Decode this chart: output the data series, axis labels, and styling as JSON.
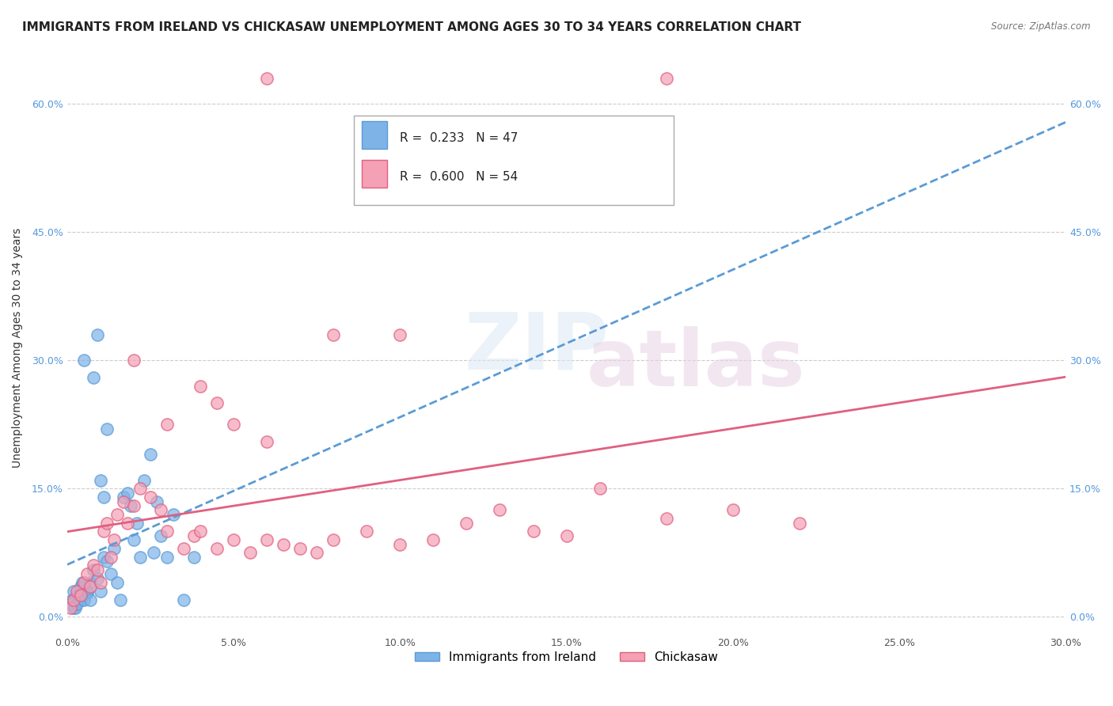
{
  "title": "IMMIGRANTS FROM IRELAND VS CHICKASAW UNEMPLOYMENT AMONG AGES 30 TO 34 YEARS CORRELATION CHART",
  "source": "Source: ZipAtlas.com",
  "ylabel": "Unemployment Among Ages 30 to 34 years",
  "legend_label_blue": "Immigrants from Ireland",
  "legend_label_pink": "Chickasaw",
  "legend_blue_r": "R =  0.233",
  "legend_blue_n": "N = 47",
  "legend_pink_r": "R =  0.600",
  "legend_pink_n": "N = 54",
  "xlim": [
    0.0,
    30.0
  ],
  "ylim": [
    -2.0,
    65.0
  ],
  "x_ticks": [
    0.0,
    5.0,
    10.0,
    15.0,
    20.0,
    25.0,
    30.0
  ],
  "y_ticks": [
    0.0,
    15.0,
    30.0,
    45.0,
    60.0
  ],
  "blue_color": "#7EB3E8",
  "pink_color": "#F4A0B5",
  "blue_line_color": "#5B9BD5",
  "pink_line_color": "#E06080",
  "title_fontsize": 11,
  "axis_label_fontsize": 10,
  "tick_fontsize": 9,
  "legend_fontsize": 11,
  "blue_points": [
    [
      0.2,
      1.0
    ],
    [
      0.3,
      2.5
    ],
    [
      0.4,
      2.0
    ],
    [
      0.5,
      3.5
    ],
    [
      0.6,
      2.8
    ],
    [
      0.7,
      4.0
    ],
    [
      0.8,
      5.5
    ],
    [
      0.9,
      4.5
    ],
    [
      1.0,
      3.0
    ],
    [
      1.1,
      7.0
    ],
    [
      1.2,
      6.5
    ],
    [
      1.3,
      5.0
    ],
    [
      1.4,
      8.0
    ],
    [
      1.5,
      4.0
    ],
    [
      1.6,
      2.0
    ],
    [
      1.7,
      14.0
    ],
    [
      1.8,
      14.5
    ],
    [
      1.9,
      13.0
    ],
    [
      2.0,
      9.0
    ],
    [
      2.1,
      11.0
    ],
    [
      2.2,
      7.0
    ],
    [
      2.3,
      16.0
    ],
    [
      2.5,
      19.0
    ],
    [
      2.6,
      7.5
    ],
    [
      2.7,
      13.5
    ],
    [
      2.8,
      9.5
    ],
    [
      3.0,
      7.0
    ],
    [
      3.2,
      12.0
    ],
    [
      3.5,
      2.0
    ],
    [
      3.8,
      7.0
    ],
    [
      0.1,
      1.5
    ],
    [
      0.15,
      2.0
    ],
    [
      0.2,
      3.0
    ],
    [
      0.25,
      1.0
    ],
    [
      0.3,
      1.5
    ],
    [
      0.35,
      2.5
    ],
    [
      0.4,
      3.5
    ],
    [
      0.45,
      4.0
    ],
    [
      0.5,
      2.0
    ],
    [
      0.6,
      3.0
    ],
    [
      0.7,
      2.0
    ],
    [
      1.0,
      16.0
    ],
    [
      1.1,
      14.0
    ],
    [
      0.8,
      28.0
    ],
    [
      0.9,
      33.0
    ],
    [
      0.5,
      30.0
    ],
    [
      1.2,
      22.0
    ]
  ],
  "pink_points": [
    [
      0.1,
      1.0
    ],
    [
      0.2,
      2.0
    ],
    [
      0.3,
      3.0
    ],
    [
      0.4,
      2.5
    ],
    [
      0.5,
      4.0
    ],
    [
      0.6,
      5.0
    ],
    [
      0.7,
      3.5
    ],
    [
      0.8,
      6.0
    ],
    [
      0.9,
      5.5
    ],
    [
      1.0,
      4.0
    ],
    [
      1.1,
      10.0
    ],
    [
      1.2,
      11.0
    ],
    [
      1.3,
      7.0
    ],
    [
      1.4,
      9.0
    ],
    [
      1.5,
      12.0
    ],
    [
      1.7,
      13.5
    ],
    [
      1.8,
      11.0
    ],
    [
      2.0,
      13.0
    ],
    [
      2.2,
      15.0
    ],
    [
      2.5,
      14.0
    ],
    [
      2.8,
      12.5
    ],
    [
      3.0,
      10.0
    ],
    [
      3.5,
      8.0
    ],
    [
      3.8,
      9.5
    ],
    [
      4.0,
      10.0
    ],
    [
      4.5,
      8.0
    ],
    [
      5.0,
      9.0
    ],
    [
      5.5,
      7.5
    ],
    [
      6.0,
      9.0
    ],
    [
      6.5,
      8.5
    ],
    [
      7.0,
      8.0
    ],
    [
      7.5,
      7.5
    ],
    [
      8.0,
      9.0
    ],
    [
      9.0,
      10.0
    ],
    [
      10.0,
      8.5
    ],
    [
      11.0,
      9.0
    ],
    [
      12.0,
      11.0
    ],
    [
      13.0,
      12.5
    ],
    [
      14.0,
      10.0
    ],
    [
      15.0,
      9.5
    ],
    [
      16.0,
      15.0
    ],
    [
      18.0,
      11.5
    ],
    [
      20.0,
      12.5
    ],
    [
      22.0,
      11.0
    ],
    [
      6.0,
      63.0
    ],
    [
      18.0,
      63.0
    ],
    [
      8.0,
      33.0
    ],
    [
      10.0,
      33.0
    ],
    [
      2.0,
      30.0
    ],
    [
      4.0,
      27.0
    ],
    [
      3.0,
      22.5
    ],
    [
      4.5,
      25.0
    ],
    [
      5.0,
      22.5
    ],
    [
      6.0,
      20.5
    ]
  ]
}
